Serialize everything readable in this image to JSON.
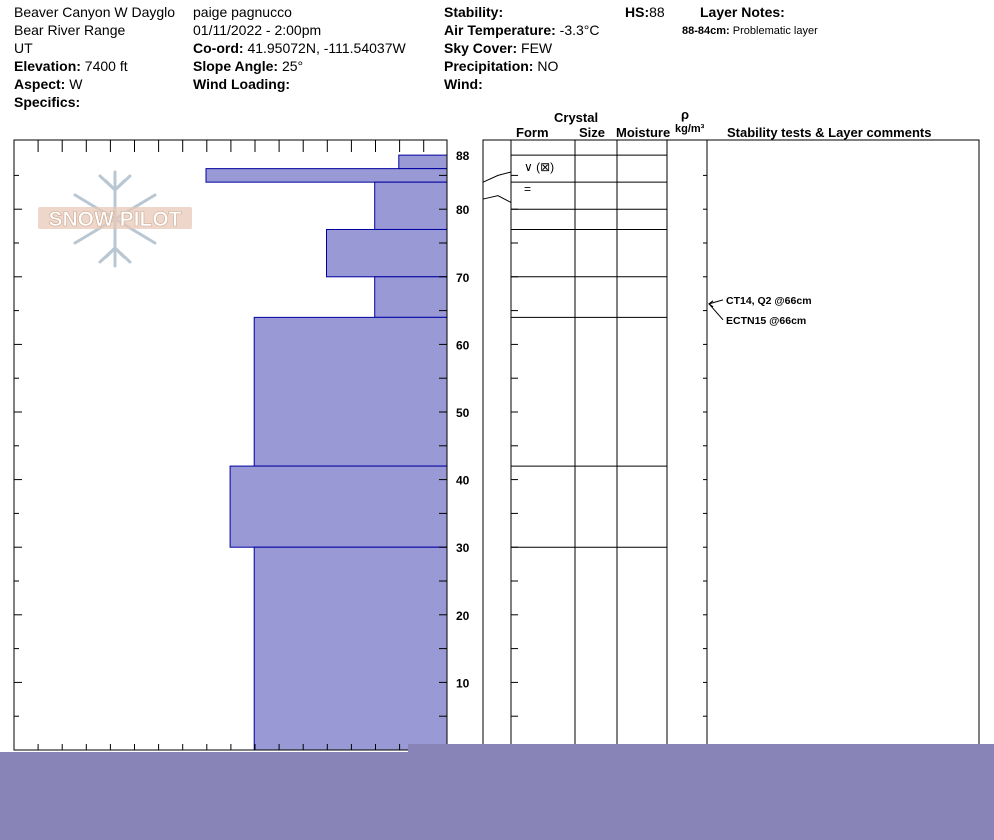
{
  "header": {
    "location": "Beaver Canyon W Dayglo",
    "range": "Bear River Range",
    "state": "UT",
    "elevation_label": "Elevation:",
    "elevation": "7400 ft",
    "aspect_label": "Aspect:",
    "aspect": "W",
    "specifics_label": "Specifics:",
    "observer": "paige pagnucco",
    "datetime": "01/11/2022 - 2:00pm",
    "coord_label": "Co-ord:",
    "coord": "41.95072N, -111.54037W",
    "slope_label": "Slope Angle:",
    "slope": "25°",
    "wind_loading_label": "Wind Loading:",
    "stability_label": "Stability:",
    "air_temp_label": "Air Temperature:",
    "air_temp": "-3.3°C",
    "sky_label": "Sky Cover:",
    "sky": "FEW",
    "precip_label": "Precipitation:",
    "precip": "NO",
    "wind_label": "Wind:",
    "hs_label": "HS:",
    "hs": "88",
    "layer_notes_label": "Layer Notes:",
    "layer_note_range": "88-84cm:",
    "layer_note_text": "Problematic layer"
  },
  "logo": {
    "text": "SNOW PILOT"
  },
  "columns": {
    "crystal": "Crystal",
    "form": "Form",
    "size": "Size",
    "moisture": "Moisture",
    "rho": "ρ",
    "density_unit": "kg/m³",
    "stability_comments": "Stability tests & Layer comments"
  },
  "form_symbols": [
    {
      "text": "∨ (⊠)",
      "top_cm": 84,
      "bottom_cm": 80
    },
    {
      "text": "=",
      "top_cm": 84,
      "bottom_cm": 80
    }
  ],
  "stability_tests": [
    {
      "text": "CT14, Q2 @66cm",
      "depth_cm": 66
    },
    {
      "text": "ECTN15 @66cm",
      "depth_cm": 66
    }
  ],
  "chart_data": {
    "type": "bar",
    "orientation": "horizontal",
    "description_of_axes": "hand hardness profile by snow height",
    "ylabel": "",
    "xlabel": "",
    "ylim": [
      0,
      88
    ],
    "y_ticks": [
      10,
      20,
      30,
      40,
      50,
      60,
      70,
      80,
      88
    ],
    "x_scale_units": "hardness (left = harder)",
    "layers": [
      {
        "bottom": 86,
        "top": 88,
        "hardness": 1.0
      },
      {
        "bottom": 84,
        "top": 86,
        "hardness": 5.0
      },
      {
        "bottom": 77,
        "top": 84,
        "hardness": 1.5
      },
      {
        "bottom": 70,
        "top": 77,
        "hardness": 2.5
      },
      {
        "bottom": 64,
        "top": 70,
        "hardness": 1.5
      },
      {
        "bottom": 42,
        "top": 64,
        "hardness": 4.0
      },
      {
        "bottom": 30,
        "top": 42,
        "hardness": 4.5
      },
      {
        "bottom": 0,
        "top": 30,
        "hardness": 4.0
      }
    ],
    "layer_boundaries_cm": [
      88,
      84,
      80,
      77,
      70,
      64,
      42,
      30
    ],
    "bar_color": "#9999d6",
    "bar_stroke": "#0000a0"
  }
}
